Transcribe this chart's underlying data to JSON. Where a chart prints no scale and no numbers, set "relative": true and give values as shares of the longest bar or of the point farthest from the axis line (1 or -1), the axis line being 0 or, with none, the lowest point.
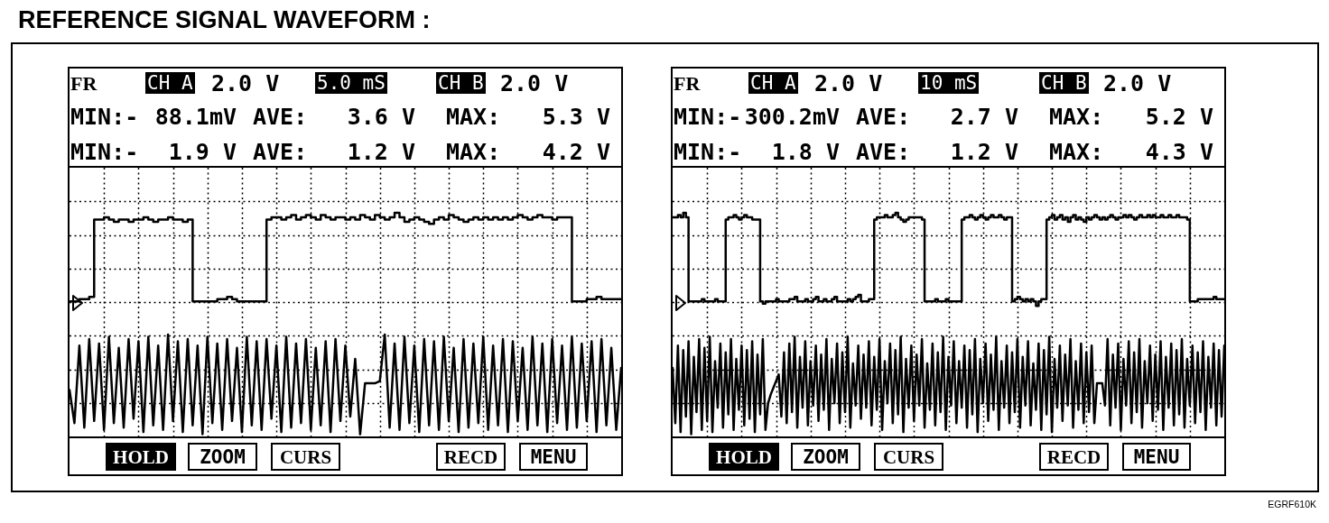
{
  "chart_data": [
    {
      "type": "line",
      "title": "REFERENCE SIGNAL WAVEFORM :",
      "relative": true,
      "grid": true,
      "categories": [
        null,
        null,
        null,
        null,
        null,
        null,
        null,
        null,
        null,
        null,
        null,
        null,
        null,
        null,
        null,
        null,
        null,
        null,
        null,
        null,
        null,
        null,
        null,
        null,
        null,
        null,
        null,
        null,
        null,
        null,
        null,
        null,
        null,
        null,
        null,
        null,
        null,
        null,
        null,
        null,
        null,
        null,
        null,
        null,
        null,
        null,
        null,
        null,
        null,
        null,
        null,
        null,
        null,
        null,
        null,
        null,
        null,
        null,
        null,
        null,
        null,
        null,
        null,
        null,
        null,
        null,
        null,
        null,
        null,
        null,
        null,
        null,
        null,
        null,
        null,
        null,
        null,
        null,
        null,
        null,
        null,
        null,
        null,
        null,
        null,
        null,
        null,
        null,
        null,
        null,
        null,
        null,
        null,
        null,
        null,
        null,
        null,
        null,
        null,
        null,
        null,
        null,
        null,
        null,
        null,
        null,
        null,
        null,
        null,
        null,
        null,
        null,
        null
      ],
      "series": [
        {
          "type": "step",
          "color": "#000000",
          "values": [
            0.6,
            0.6,
            0.61,
            0.61,
            0.62,
            0.97,
            0.97,
            0.98,
            0.97,
            0.96,
            0.97,
            0.97,
            0.96,
            0.97,
            0.97,
            0.98,
            0.97,
            0.96,
            0.97,
            0.97,
            0.98,
            0.97,
            0.97,
            0.96,
            0.97,
            0.6,
            0.6,
            0.6,
            0.6,
            0.6,
            0.61,
            0.61,
            0.62,
            0.61,
            0.6,
            0.6,
            0.6,
            0.6,
            0.6,
            0.6,
            0.97,
            0.98,
            0.98,
            0.97,
            0.98,
            0.99,
            0.97,
            0.98,
            0.99,
            0.98,
            0.97,
            0.99,
            0.98,
            0.97,
            0.98,
            0.98,
            0.97,
            0.98,
            0.97,
            0.99,
            0.98,
            0.97,
            0.99,
            0.98,
            0.97,
            0.98,
            1.0,
            0.98,
            0.96,
            0.97,
            0.98,
            0.97,
            0.96,
            0.95,
            0.97,
            0.98,
            0.97,
            0.99,
            0.98,
            0.97,
            0.96,
            0.97,
            0.98,
            0.97,
            0.98,
            0.97,
            0.98,
            0.97,
            0.98,
            0.97,
            0.98,
            0.99,
            0.98,
            0.97,
            0.98,
            0.99,
            0.98,
            0.98,
            0.97,
            0.98,
            0.98,
            0.98,
            0.6,
            0.6,
            0.6,
            0.61,
            0.61,
            0.62,
            0.61,
            0.61,
            0.61,
            0.61,
            0.61
          ]
        },
        {
          "color": "#000000",
          "values": [
            0.2,
            0.05,
            0.4,
            0.03,
            0.43,
            0.06,
            0.41,
            0.02,
            0.44,
            0.05,
            0.39,
            0.03,
            0.43,
            0.07,
            0.42,
            0.01,
            0.44,
            0.04,
            0.4,
            0.02,
            0.45,
            0.06,
            0.42,
            0.01,
            0.43,
            0.04,
            0.4,
            0,
            0.44,
            0.05,
            0.41,
            0.02,
            0.43,
            0.06,
            0.39,
            0.01,
            0.44,
            0.04,
            0.42,
            0.02,
            0.43,
            0.07,
            0.4,
            0.01,
            0.44,
            0.03,
            0.41,
            0.05,
            0.43,
            0.02,
            0.39,
            0.04,
            0.42,
            0.01,
            0.43,
            0.06,
            0.4,
            0.08,
            0.34,
            0,
            0.23,
            0.23,
            0.23,
            0.24,
            0.45,
            0.03,
            0.41,
            0.02,
            0.44,
            0.05,
            0.4,
            0.01,
            0.43,
            0.04,
            0.42,
            0.02,
            0.44,
            0.06,
            0.39,
            0.01,
            0.43,
            0.03,
            0.41,
            0.05,
            0.44,
            0.02,
            0.4,
            0.04,
            0.43,
            0.01,
            0.42,
            0.06,
            0.39,
            0.02,
            0.44,
            0.04,
            0.41,
            0.01,
            0.43,
            0.05,
            0.4,
            0.02,
            0.44,
            0.03,
            0.41,
            0.06,
            0.42,
            0.01,
            0.43,
            0.04,
            0.39,
            0.02,
            0.3
          ]
        }
      ],
      "annotations": [
        "FR",
        "CH A",
        "2.0 V",
        "5.0 mS",
        "CH B",
        "2.0 V",
        "MIN:-",
        "88.1mV",
        "AVE:",
        "3.6 V",
        "MAX:",
        "5.3 V",
        "MIN:-",
        "1.9 V",
        "AVE:",
        "1.2 V",
        "MAX:",
        "4.2 V",
        "HOLD",
        "ZOOM",
        "CURS",
        "RECD",
        "MENU"
      ]
    },
    {
      "type": "line",
      "relative": true,
      "grid": true,
      "categories": [
        null,
        null,
        null,
        null,
        null,
        null,
        null,
        null,
        null,
        null,
        null,
        null,
        null,
        null,
        null,
        null,
        null,
        null,
        null,
        null,
        null,
        null,
        null,
        null,
        null,
        null,
        null,
        null,
        null,
        null,
        null,
        null,
        null,
        null,
        null,
        null,
        null,
        null,
        null,
        null,
        null,
        null,
        null,
        null,
        null,
        null,
        null,
        null,
        null,
        null,
        null,
        null,
        null,
        null,
        null,
        null,
        null,
        null,
        null,
        null,
        null,
        null,
        null,
        null,
        null,
        null,
        null,
        null,
        null,
        null,
        null,
        null,
        null,
        null,
        null,
        null,
        null,
        null,
        null,
        null,
        null,
        null,
        null,
        null,
        null,
        null,
        null,
        null,
        null,
        null,
        null,
        null,
        null,
        null,
        null,
        null,
        null,
        null,
        null,
        null,
        null,
        null,
        null,
        null,
        null,
        null,
        null,
        null,
        null,
        null,
        null,
        null,
        null,
        null,
        null,
        null,
        null,
        null,
        null,
        null,
        null,
        null,
        null,
        null,
        null,
        null,
        null,
        null,
        null,
        null,
        null,
        null,
        null,
        null,
        null,
        null,
        null,
        null,
        null,
        null,
        null,
        null,
        null,
        null,
        null,
        null,
        null,
        null,
        null,
        null,
        null,
        null,
        null,
        null,
        null,
        null,
        null,
        null,
        null,
        null,
        null,
        null,
        null,
        null,
        null,
        null,
        null,
        null,
        null,
        null,
        null,
        null,
        null,
        null,
        null,
        null,
        null,
        null,
        null,
        null,
        null,
        null,
        null,
        null,
        null,
        null,
        null,
        null,
        null,
        null,
        null,
        null,
        null,
        null,
        null,
        null,
        null,
        null,
        null,
        null,
        null,
        null,
        null,
        null,
        null,
        null,
        null,
        null,
        null
      ],
      "series": [
        {
          "type": "step",
          "color": "#000000",
          "values": [
            0.98,
            0.98,
            0.99,
            0.98,
            1.0,
            0.98,
            0.6,
            0.6,
            0.6,
            0.6,
            0.6,
            0.61,
            0.6,
            0.6,
            0.6,
            0.6,
            0.61,
            0.6,
            0.6,
            0.6,
            0.97,
            0.98,
            0.98,
            0.99,
            0.98,
            0.97,
            0.98,
            0.99,
            0.98,
            0.98,
            0.97,
            0.97,
            0.97,
            0.6,
            0.59,
            0.6,
            0.6,
            0.6,
            0.6,
            0.61,
            0.6,
            0.6,
            0.6,
            0.6,
            0.61,
            0.61,
            0.62,
            0.6,
            0.6,
            0.6,
            0.61,
            0.6,
            0.6,
            0.61,
            0.62,
            0.6,
            0.6,
            0.61,
            0.6,
            0.6,
            0.61,
            0.62,
            0.6,
            0.6,
            0.6,
            0.6,
            0.61,
            0.6,
            0.61,
            0.62,
            0.63,
            0.6,
            0.6,
            0.6,
            0.61,
            0.61,
            0.97,
            0.98,
            0.98,
            0.98,
            0.99,
            0.98,
            0.98,
            0.99,
            1.0,
            0.98,
            0.97,
            0.96,
            0.97,
            0.98,
            0.98,
            0.98,
            0.98,
            0.98,
            0.97,
            0.6,
            0.6,
            0.6,
            0.6,
            0.61,
            0.6,
            0.6,
            0.6,
            0.61,
            0.6,
            0.6,
            0.6,
            0.6,
            0.6,
            0.97,
            0.98,
            0.98,
            0.99,
            0.98,
            0.97,
            0.98,
            0.99,
            0.98,
            0.97,
            0.98,
            0.99,
            0.98,
            0.98,
            0.99,
            0.98,
            0.97,
            0.98,
            0.98,
            0.6,
            0.61,
            0.62,
            0.61,
            0.6,
            0.61,
            0.6,
            0.61,
            0.6,
            0.58,
            0.6,
            0.61,
            0.61,
            0.97,
            0.98,
            0.99,
            0.97,
            0.98,
            0.99,
            0.97,
            0.98,
            0.96,
            0.98,
            0.99,
            0.97,
            0.98,
            0.97,
            0.96,
            0.98,
            0.97,
            0.98,
            0.99,
            0.98,
            0.97,
            0.98,
            0.97,
            0.98,
            0.99,
            0.98,
            0.97,
            0.98,
            0.98,
            0.99,
            0.98,
            0.99,
            0.98,
            0.97,
            0.98,
            0.99,
            0.98,
            0.98,
            0.99,
            0.98,
            0.99,
            0.98,
            0.98,
            0.99,
            0.98,
            0.98,
            0.99,
            0.98,
            0.98,
            0.99,
            0.98,
            0.98,
            0.98,
            0.97,
            0.6,
            0.6,
            0.6,
            0.61,
            0.61,
            0.61,
            0.61,
            0.61,
            0.61,
            0.62,
            0.61,
            0.61,
            0.61,
            0.61
          ]
        },
        {
          "color": "#000000",
          "values": [
            0.3,
            0.05,
            0.4,
            0.01,
            0.38,
            0.08,
            0.42,
            0,
            0.35,
            0.1,
            0.43,
            0.02,
            0.39,
            0.06,
            0.44,
            0.01,
            0.33,
            0.12,
            0.41,
            0.03,
            0.37,
            0.09,
            0.43,
            0.02,
            0.34,
            0.11,
            0.4,
            0.04,
            0.38,
            0.07,
            0.42,
            0.01,
            0.36,
            0.09,
            0.43,
            0.02,
            0.14,
            0.18,
            0.21,
            0.24,
            0.27,
            0.08,
            0.37,
            0.05,
            0.41,
            0.1,
            0.44,
            0.03,
            0.35,
            0.12,
            0.42,
            0.04,
            0.33,
            0.13,
            0.4,
            0.06,
            0.36,
            0.11,
            0.43,
            0.02,
            0.34,
            0.14,
            0.41,
            0.05,
            0.37,
            0.1,
            0.44,
            0.03,
            0.32,
            0.13,
            0.4,
            0.07,
            0.36,
            0.12,
            0.42,
            0.04,
            0.35,
            0.11,
            0.43,
            0.02,
            0.33,
            0.14,
            0.41,
            0.05,
            0.38,
            0.09,
            0.44,
            0.01,
            0.34,
            0.12,
            0.4,
            0.06,
            0.36,
            0.13,
            0.43,
            0.03,
            0.32,
            0.11,
            0.41,
            0.04,
            0.37,
            0.1,
            0.44,
            0.02,
            0.35,
            0.13,
            0.42,
            0.05,
            0.33,
            0.12,
            0.4,
            0.03,
            0.38,
            0.09,
            0.43,
            0.01,
            0.34,
            0.14,
            0.41,
            0.06,
            0.36,
            0.11,
            0.44,
            0.02,
            0.33,
            0.12,
            0.4,
            0.05,
            0.37,
            0.1,
            0.43,
            0.03,
            0.35,
            0.13,
            0.42,
            0.04,
            0.32,
            0.11,
            0.41,
            0.02,
            0.38,
            0.09,
            0.44,
            0.01,
            0.34,
            0.12,
            0.4,
            0.06,
            0.36,
            0.13,
            0.43,
            0.03,
            0.33,
            0.11,
            0.41,
            0.05,
            0.37,
            0.1,
            0.4,
            0.05,
            0.23,
            0.23,
            0.23,
            0.13,
            0.43,
            0.04,
            0.36,
            0.12,
            0.41,
            0.02,
            0.34,
            0.13,
            0.42,
            0.05,
            0.37,
            0.1,
            0.43,
            0.03,
            0.33,
            0.14,
            0.4,
            0.06,
            0.36,
            0.11,
            0.42,
            0.02,
            0.35,
            0.12,
            0.41,
            0.04,
            0.38,
            0.09,
            0.43,
            0.03,
            0.34,
            0.13,
            0.4,
            0.05,
            0.37,
            0.1,
            0.42,
            0.02,
            0.35,
            0.12,
            0.41,
            0.04,
            0.38,
            0.08,
            0.4
          ]
        }
      ],
      "annotations": [
        "FR",
        "CH A",
        "2.0 V",
        "10 mS",
        "CH B",
        "2.0 V",
        "MIN:-",
        "300.2mV",
        "AVE:",
        "2.7 V",
        "MAX:",
        "5.2 V",
        "MIN:-",
        "1.8 V",
        "AVE:",
        "1.2 V",
        "MAX:",
        "4.3 V",
        "HOLD",
        "ZOOM",
        "CURS",
        "RECD",
        "MENU",
        "EGRF610K"
      ]
    }
  ]
}
